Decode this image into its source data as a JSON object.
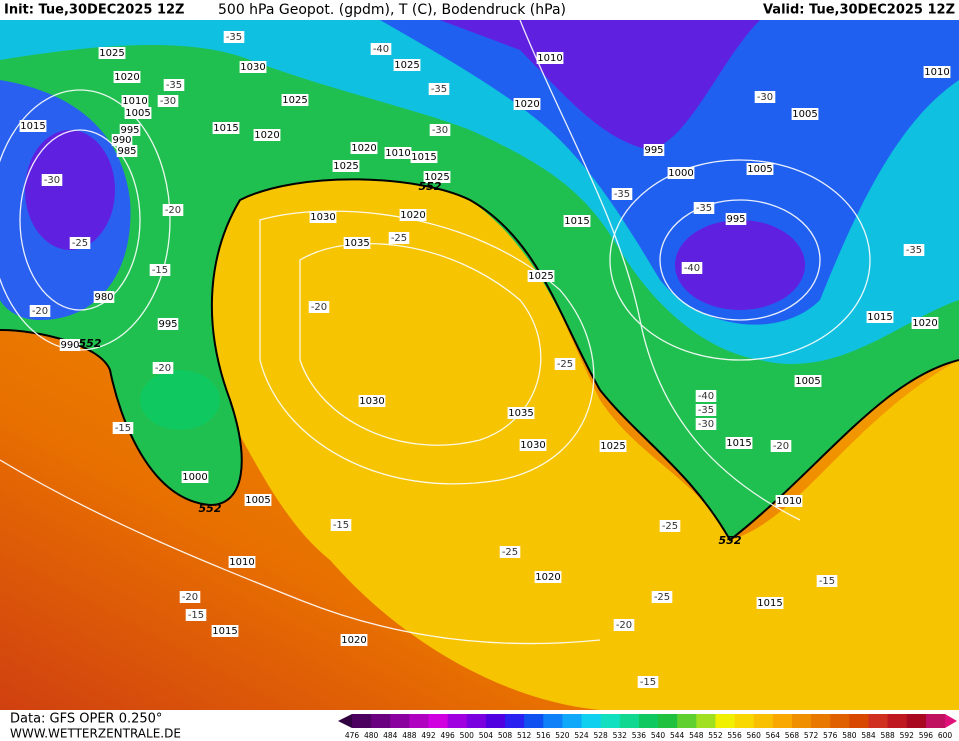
{
  "header": {
    "init": "Init: Tue,30DEC2025 12Z",
    "title": "500 hPa Geopot. (gpdm), T (C), Bodendruck (hPa)",
    "valid": "Valid: Tue,30DEC2025 12Z"
  },
  "footer": {
    "data": "Data: GFS OPER 0.250°",
    "site": "WWW.WETTERZENTRALE.DE"
  },
  "colorbar": {
    "ticks": [
      476,
      480,
      484,
      488,
      492,
      496,
      500,
      504,
      508,
      512,
      516,
      520,
      524,
      528,
      532,
      536,
      540,
      544,
      548,
      552,
      556,
      560,
      564,
      568,
      572,
      576,
      580,
      584,
      588,
      592,
      596,
      600
    ],
    "colors": [
      "#4b0060",
      "#6a007f",
      "#8a009f",
      "#b000c0",
      "#d000e0",
      "#a000e0",
      "#7a00e0",
      "#5000e0",
      "#2a20f0",
      "#1050f0",
      "#1080f8",
      "#10a8f8",
      "#10d0f0",
      "#10e0c0",
      "#10d890",
      "#10c860",
      "#20c040",
      "#60d030",
      "#a0e020",
      "#f0f000",
      "#f8d800",
      "#f8c000",
      "#f8a800",
      "#f09000",
      "#e87800",
      "#e06000",
      "#d84800",
      "#d03020",
      "#c01820",
      "#a80820",
      "#c01060"
    ]
  },
  "map": {
    "isobar_labels": [
      1025,
      1020,
      1010,
      1005,
      995,
      990,
      985,
      1015,
      1030,
      1025,
      1015,
      1020,
      1025,
      1020,
      1010,
      1015,
      1025,
      1025,
      1030,
      1020,
      1035,
      1010,
      1020,
      995,
      1000,
      1005,
      1010,
      1005,
      995,
      1015,
      1025,
      1015,
      1020,
      1005,
      1030,
      1035,
      1030,
      1025,
      1015,
      1010,
      1000,
      1005,
      1010,
      1020,
      1015,
      1015,
      1020,
      980,
      990,
      995
    ],
    "height_labels": [
      552,
      552,
      552,
      552
    ],
    "temperature_labels": [
      -35,
      -40,
      -35,
      -30,
      -35,
      -30,
      -30,
      -20,
      -25,
      -15,
      -20,
      -20,
      -25,
      -35,
      -30,
      -35,
      -40,
      -35,
      -25,
      -20,
      -15,
      -40,
      -35,
      -30,
      -20,
      -15,
      -25,
      -25,
      -20,
      -15,
      -25,
      -20,
      -15,
      -15
    ]
  }
}
